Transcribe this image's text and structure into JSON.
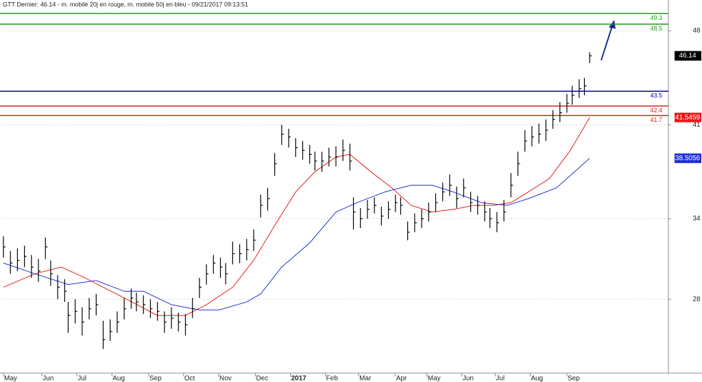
{
  "chart_data": {
    "type": "ohlc",
    "title": "GTT Dernier: 46.14 - m. mobile 20j en rouge, m. mobile 50j en bleu - 09/21/2017 09:13:51",
    "color": "#000000",
    "x": [
      0,
      4,
      8,
      12,
      16,
      20,
      24,
      27,
      31,
      35,
      37,
      41,
      45,
      49,
      53,
      57,
      61,
      65,
      69,
      73,
      76,
      80,
      84,
      88,
      92,
      96,
      100,
      104,
      108,
      112,
      116,
      120,
      124,
      127,
      131,
      135,
      139,
      143,
      147,
      151,
      155,
      159,
      163,
      167,
      171,
      175,
      178,
      182,
      186,
      190,
      194,
      198,
      200,
      204,
      208,
      212,
      216,
      220,
      224,
      227,
      231,
      235,
      239,
      243,
      247,
      251,
      255,
      259,
      263,
      267,
      271,
      275,
      278,
      282,
      286,
      290,
      294,
      298,
      302,
      306,
      310,
      314,
      318,
      322,
      325,
      329,
      332,
      335
    ],
    "high": [
      32.7,
      31.6,
      31.8,
      32.0,
      31.3,
      31.0,
      32.6,
      30.9,
      29.8,
      29.5,
      27.8,
      28.0,
      27.4,
      28.1,
      28.4,
      26.4,
      26.5,
      27.1,
      28.1,
      28.8,
      28.5,
      28.3,
      28.0,
      27.8,
      27.1,
      27.4,
      27.0,
      26.9,
      28.1,
      29.6,
      30.6,
      31.3,
      31.1,
      30.7,
      32.3,
      32.1,
      32.5,
      33.2,
      35.8,
      36.3,
      38.9,
      41.0,
      40.7,
      40.0,
      39.8,
      39.5,
      39.0,
      39.0,
      39.3,
      39.4,
      39.9,
      39.6,
      35.6,
      34.8,
      35.4,
      35.6,
      34.9,
      35.3,
      35.8,
      35.6,
      33.8,
      34.4,
      34.7,
      35.2,
      35.9,
      36.7,
      37.3,
      36.4,
      37.0,
      36.0,
      35.7,
      35.3,
      34.8,
      34.5,
      35.4,
      37.4,
      39.0,
      40.6,
      40.9,
      41.1,
      41.4,
      42.1,
      42.7,
      43.3,
      43.9,
      44.4,
      44.5,
      46.4
    ],
    "low": [
      31.1,
      29.9,
      30.1,
      30.4,
      29.6,
      29.3,
      31.0,
      29.0,
      28.0,
      27.8,
      25.5,
      26.2,
      25.3,
      26.5,
      26.8,
      24.3,
      24.9,
      25.5,
      26.5,
      27.3,
      27.1,
      26.9,
      26.6,
      26.4,
      25.5,
      25.8,
      25.6,
      25.3,
      26.6,
      28.1,
      29.1,
      29.9,
      29.6,
      29.1,
      30.6,
      30.7,
      30.9,
      31.6,
      34.1,
      34.6,
      37.2,
      39.5,
      39.3,
      38.6,
      38.4,
      38.1,
      37.6,
      37.5,
      37.9,
      37.9,
      38.3,
      37.6,
      33.2,
      33.3,
      34.0,
      34.4,
      33.5,
      34.0,
      34.5,
      34.3,
      32.4,
      33.0,
      33.3,
      33.8,
      34.5,
      35.3,
      35.7,
      34.8,
      35.6,
      34.5,
      34.3,
      33.8,
      33.3,
      33.0,
      33.8,
      35.6,
      37.2,
      39.0,
      39.4,
      39.6,
      39.8,
      40.7,
      41.2,
      41.9,
      42.5,
      43.0,
      43.2,
      45.6
    ],
    "close": [
      31.9,
      30.7,
      30.9,
      31.2,
      30.4,
      30.1,
      31.9,
      29.9,
      28.9,
      28.6,
      26.8,
      27.1,
      26.3,
      27.3,
      27.6,
      25.0,
      25.6,
      26.3,
      27.3,
      28.1,
      27.8,
      27.6,
      27.3,
      27.1,
      26.3,
      26.6,
      26.3,
      26.1,
      27.3,
      28.9,
      29.9,
      30.7,
      30.4,
      29.9,
      31.4,
      31.4,
      31.7,
      32.4,
      35.0,
      35.5,
      38.1,
      40.3,
      40.1,
      39.3,
      39.1,
      38.8,
      38.3,
      38.3,
      38.6,
      38.6,
      39.1,
      38.3,
      34.5,
      34.0,
      34.7,
      35.0,
      34.2,
      34.7,
      35.2,
      35.0,
      33.0,
      33.7,
      34.0,
      34.5,
      35.2,
      36.0,
      36.5,
      35.5,
      36.3,
      35.2,
      35.0,
      34.5,
      34.0,
      33.7,
      34.5,
      36.5,
      38.1,
      39.8,
      40.1,
      40.3,
      40.6,
      41.4,
      41.9,
      42.6,
      43.2,
      43.7,
      43.9,
      46.14
    ],
    "overlays": [
      {
        "color": "#e8191a",
        "x": [
          0,
          18,
          33,
          45,
          57,
          69,
          88,
          104,
          116,
          131,
          143,
          155,
          167,
          178,
          190,
          198,
          210,
          222,
          233,
          245,
          257,
          269,
          280,
          290,
          300,
          312,
          324,
          335
        ],
        "values": [
          28.9,
          29.9,
          30.4,
          29.7,
          28.9,
          28.1,
          26.8,
          26.8,
          27.6,
          28.9,
          30.9,
          33.5,
          36.0,
          37.5,
          38.6,
          38.8,
          37.5,
          36.3,
          35.0,
          34.5,
          34.7,
          35.0,
          35.0,
          35.2,
          36.0,
          37.0,
          39.1,
          41.5459
        ]
      },
      {
        "color": "#1f2fd6",
        "x": [
          0,
          18,
          37,
          53,
          69,
          80,
          96,
          112,
          123,
          139,
          147,
          159,
          175,
          190,
          202,
          218,
          233,
          245,
          257,
          273,
          288,
          300,
          316,
          335
        ],
        "values": [
          30.7,
          29.9,
          29.1,
          29.4,
          28.6,
          28.6,
          27.6,
          27.2,
          27.2,
          27.8,
          28.4,
          30.4,
          32.2,
          34.5,
          35.2,
          36.0,
          36.5,
          36.5,
          36.0,
          35.2,
          35.0,
          35.5,
          36.3,
          38.5056
        ]
      }
    ],
    "levels": [
      {
        "value": 49.3,
        "color": "#1a9a1a"
      },
      {
        "value": 48.5,
        "color": "#1a9a1a"
      },
      {
        "value": 43.5,
        "color": "#0000aa"
      },
      {
        "value": 42.4,
        "color": "#e8191a"
      },
      {
        "value": 41.7,
        "color": "#e8191a"
      }
    ],
    "xlim": [
      0,
      380
    ],
    "xticks": [
      {
        "value": 0,
        "label": "May"
      },
      {
        "value": 22,
        "label": "Jun"
      },
      {
        "value": 42,
        "label": "Jul"
      },
      {
        "value": 62,
        "label": "Aug"
      },
      {
        "value": 83,
        "label": "Sep"
      },
      {
        "value": 103,
        "label": "Oct"
      },
      {
        "value": 123,
        "label": "Nov"
      },
      {
        "value": 144,
        "label": "Dec"
      },
      {
        "value": 164,
        "label": "2017"
      },
      {
        "value": 184,
        "label": "Feb"
      },
      {
        "value": 203,
        "label": "Mar"
      },
      {
        "value": 224,
        "label": "Apr"
      },
      {
        "value": 242,
        "label": "May"
      },
      {
        "value": 262,
        "label": "Jun"
      },
      {
        "value": 281,
        "label": "Jul"
      },
      {
        "value": 301,
        "label": "Aug"
      },
      {
        "value": 322,
        "label": "Sep"
      }
    ],
    "ylim": [
      22.5,
      50.3
    ],
    "yticks": [
      28,
      34,
      41,
      48
    ],
    "grid": true
  }
}
